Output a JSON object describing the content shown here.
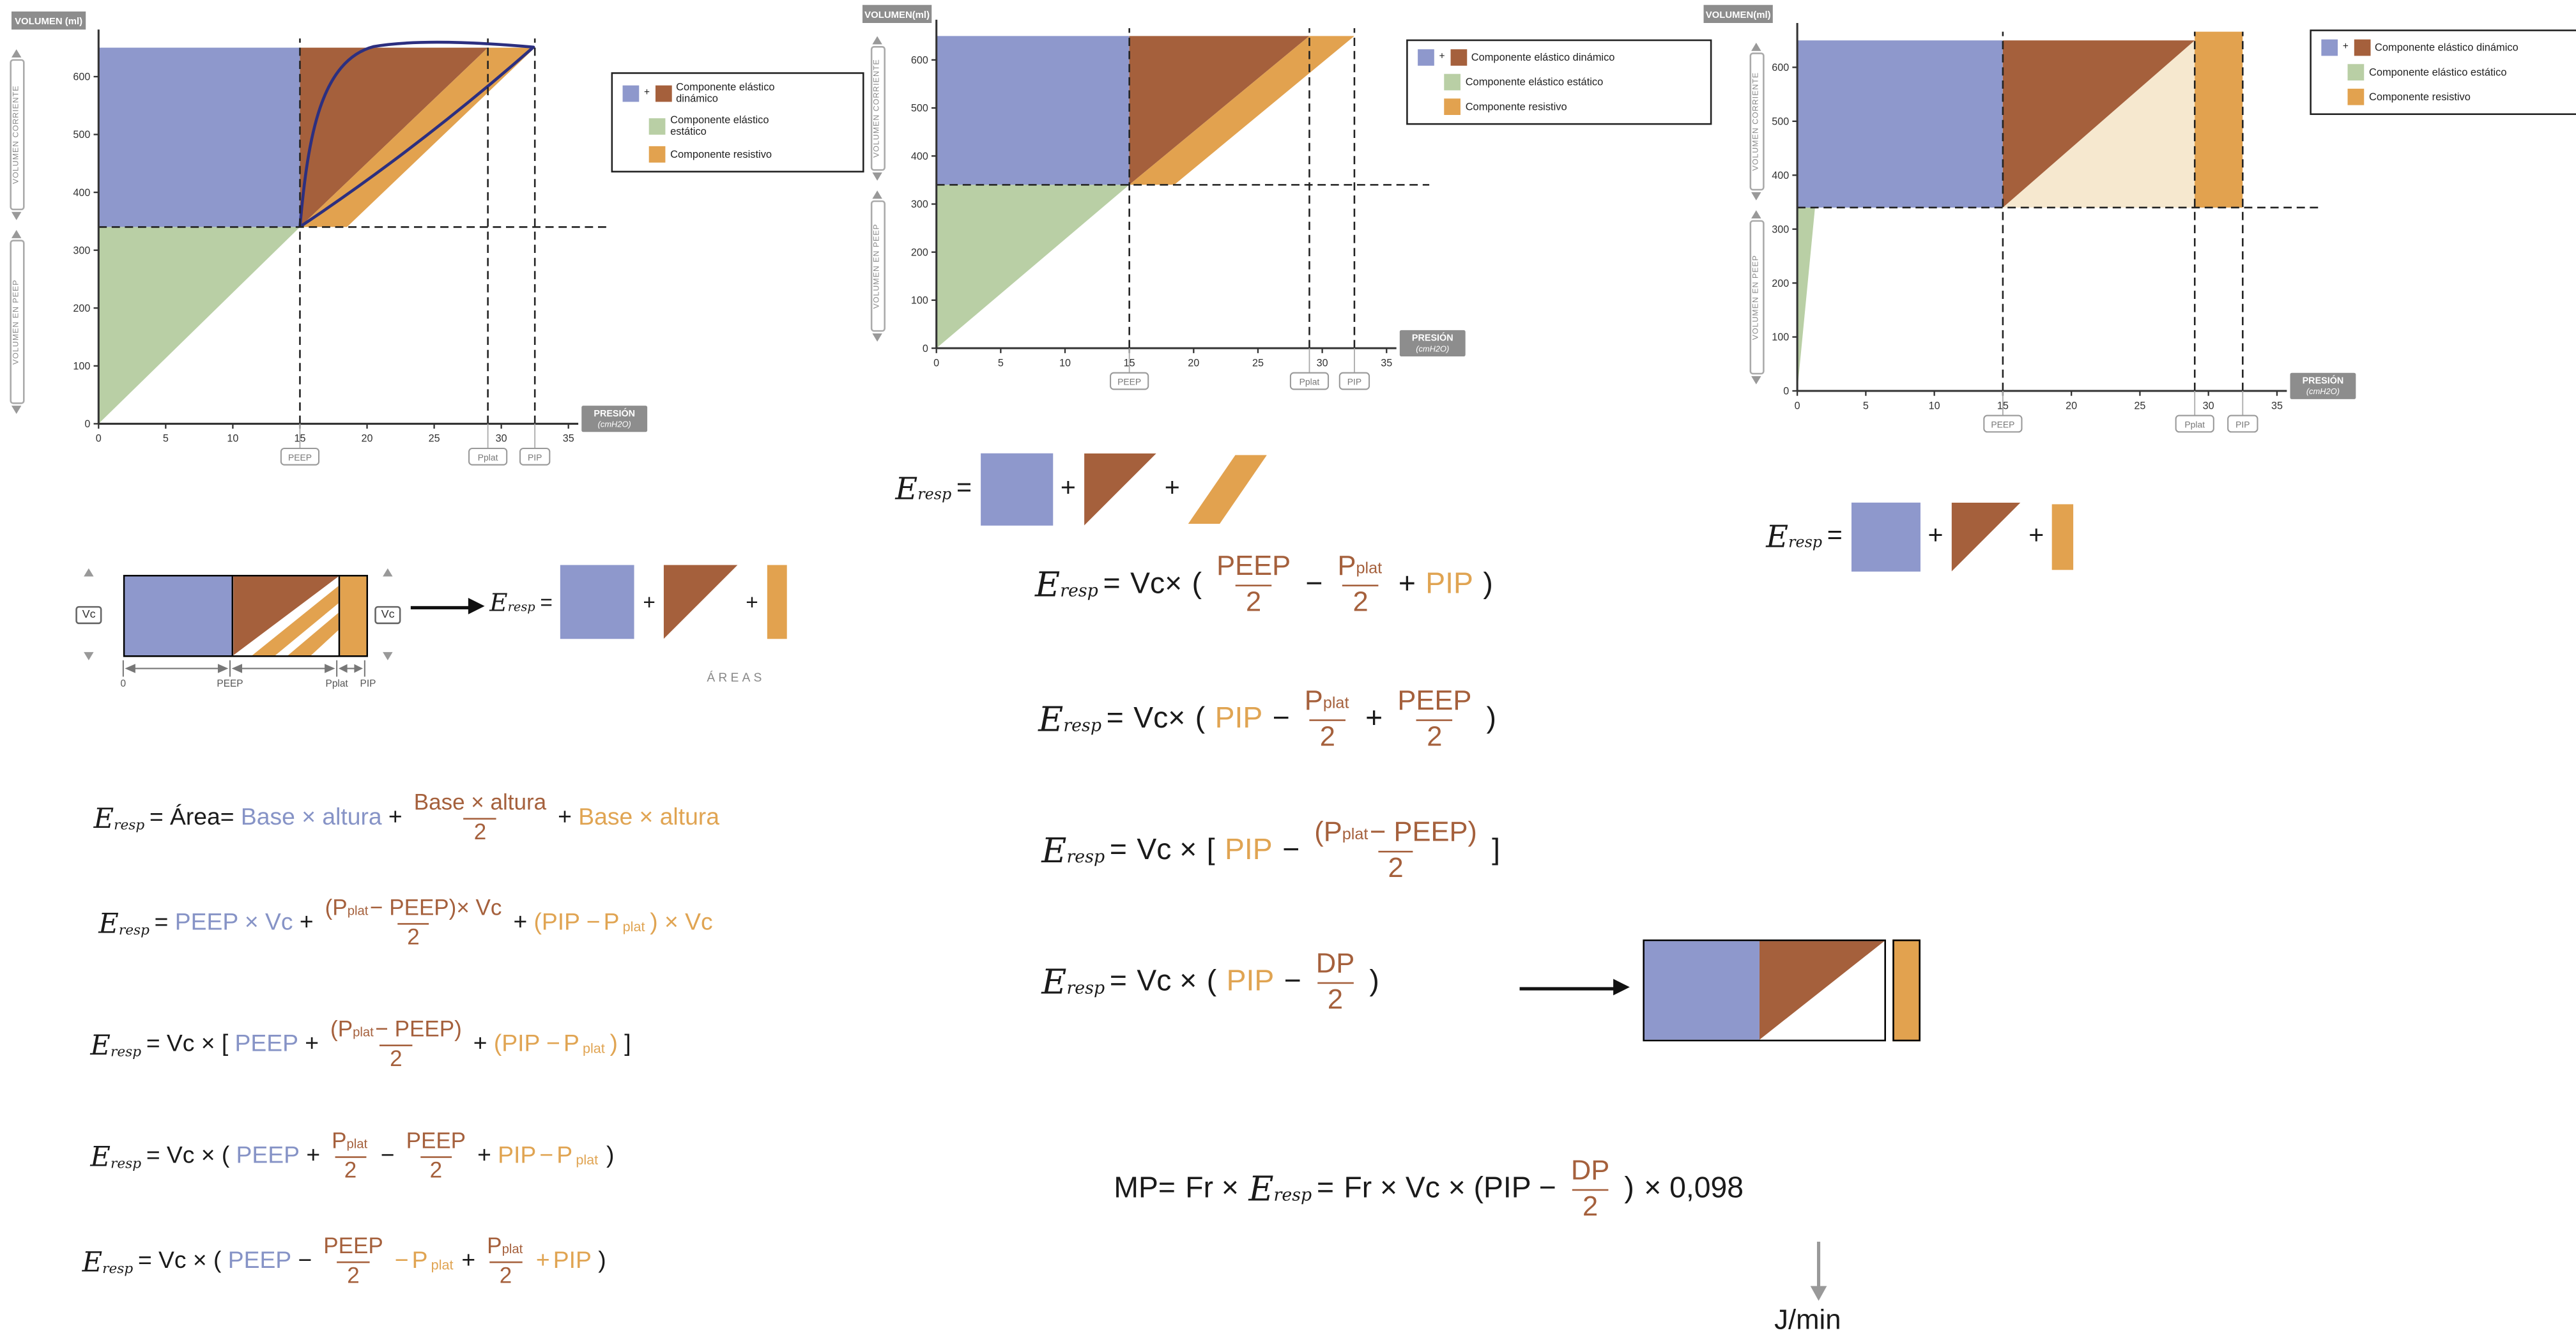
{
  "colors": {
    "blue": "#8e98cc",
    "green": "#b9cfa5",
    "brown": "#a5603c",
    "orange": "#e2a24f",
    "cream": "#f6e8cf",
    "navy": "#2c2f80",
    "badge": "#8d8d8d",
    "tblue": "#8693c6",
    "tbrown": "#a5603c",
    "torange": "#e0a452"
  },
  "axis": {
    "corriente": "VOLUMEN CORRIENTE",
    "en_peep": "VOLUMEN EN PEEP"
  },
  "legend": {
    "plus": "+",
    "dynamic": "Componente elástico dinámico",
    "static": "Componente elástico estático",
    "resistive": "Componente resistivo"
  },
  "labels": {
    "zero": "0",
    "peep": "PEEP",
    "pplat": "Pplat",
    "pip": "PIP",
    "vc": "Vc",
    "areas": "ÁREAS",
    "jmin": "J/min"
  },
  "t": {
    "E": "E",
    "resp": "resp",
    "eq": "=",
    "area": "Área=",
    "base": "Base × altura",
    "plus": "+",
    "minus": "−",
    "vcx": "Vc ×",
    "vcx2": "Vc×",
    "lp": "(",
    "rp": ")",
    "lb": "[",
    "rb": "]",
    "peep": "PEEP",
    "P": "P",
    "plat": "plat",
    "pip": "PIP",
    "dp": "DP",
    "two": "2",
    "peepxvc": "PEEP × Vc",
    "mpc": "− PEEP)",
    "mpcx": "− PEEP)× Vc",
    "pmo": "(PIP −",
    "cxvc": ") × Vc",
    "mp": "MP=",
    "frx": "Fr ×",
    "frvc": "Fr × Vc × (PIP −",
    "c098": "× 0,098"
  },
  "chart_data": [
    {
      "id": "pv1",
      "type": "area",
      "ylabel": "VOLUMEN (ml)",
      "xlabel1": "PRESIÓN",
      "xlabel2": "(cmH2O)",
      "xlim": [
        0,
        35
      ],
      "ylim": [
        0,
        670
      ],
      "xticks": [
        0,
        5,
        10,
        15,
        20,
        25,
        30,
        35
      ],
      "yticks": [
        0,
        100,
        200,
        300,
        400,
        500,
        600
      ],
      "peep": 15,
      "pplat": 29,
      "pip": 32.5,
      "vol_peep": 340,
      "vol_max": 650,
      "hline": 340,
      "vlines": [
        15,
        29,
        32.5
      ],
      "loop": true,
      "regions": [
        {
          "color": "green",
          "points": [
            [
              0,
              0
            ],
            [
              15,
              340
            ],
            [
              0,
              340
            ]
          ]
        },
        {
          "color": "blue",
          "points": [
            [
              0,
              340
            ],
            [
              15,
              340
            ],
            [
              15,
              650
            ],
            [
              0,
              650
            ]
          ]
        },
        {
          "color": "brown",
          "points": [
            [
              15,
              340
            ],
            [
              29,
              650
            ],
            [
              15,
              650
            ]
          ]
        },
        {
          "color": "orange",
          "points": [
            [
              15,
              340
            ],
            [
              18.5,
              340
            ],
            [
              32.5,
              650
            ],
            [
              29,
              650
            ]
          ]
        }
      ],
      "markers": [
        {
          "label": "PEEP",
          "x": 15
        },
        {
          "label": "Pplat",
          "x": 29
        },
        {
          "label": "PIP",
          "x": 32.5
        }
      ]
    },
    {
      "id": "pv2",
      "type": "area",
      "ylabel": "VOLUMEN(ml)",
      "xlabel1": "PRESIÓN",
      "xlabel2": "(cmH2O)",
      "xlim": [
        0,
        35
      ],
      "ylim": [
        0,
        670
      ],
      "xticks": [
        0,
        5,
        10,
        15,
        20,
        25,
        30,
        35
      ],
      "yticks": [
        0,
        100,
        200,
        300,
        400,
        500,
        600
      ],
      "peep": 15,
      "pplat": 29,
      "pip": 32.5,
      "vol_peep": 340,
      "vol_max": 650,
      "hline": 340,
      "vlines": [
        15,
        29,
        32.5
      ],
      "loop": false,
      "regions": [
        {
          "color": "green",
          "points": [
            [
              0,
              0
            ],
            [
              15,
              340
            ],
            [
              0,
              340
            ]
          ]
        },
        {
          "color": "blue",
          "points": [
            [
              0,
              340
            ],
            [
              15,
              340
            ],
            [
              15,
              650
            ],
            [
              0,
              650
            ]
          ]
        },
        {
          "color": "brown",
          "points": [
            [
              15,
              340
            ],
            [
              29,
              650
            ],
            [
              15,
              650
            ]
          ]
        },
        {
          "color": "orange",
          "points": [
            [
              15,
              340
            ],
            [
              18.5,
              340
            ],
            [
              32.5,
              650
            ],
            [
              29,
              650
            ]
          ]
        }
      ],
      "markers": [
        {
          "label": "PEEP",
          "x": 15
        },
        {
          "label": "Pplat",
          "x": 29
        },
        {
          "label": "PIP",
          "x": 32.5
        }
      ]
    },
    {
      "id": "pv3",
      "type": "area",
      "ylabel": "VOLUMEN(ml)",
      "xlabel1": "PRESIÓN",
      "xlabel2": "(cmH2O)",
      "xlim": [
        0,
        35
      ],
      "ylim": [
        0,
        670
      ],
      "xticks": [
        0,
        5,
        10,
        15,
        20,
        25,
        30,
        35
      ],
      "yticks": [
        0,
        100,
        200,
        300,
        400,
        500,
        600
      ],
      "peep": 15,
      "pplat": 29,
      "pip": 32.5,
      "vol_peep": 340,
      "vol_max": 650,
      "hline": 340,
      "vlines": [
        15,
        29,
        32.5
      ],
      "loop": false,
      "regions": [
        {
          "color": "green",
          "points": [
            [
              0,
              0
            ],
            [
              1.3,
              340
            ],
            [
              0,
              340
            ]
          ]
        },
        {
          "color": "blue",
          "points": [
            [
              0,
              340
            ],
            [
              15,
              340
            ],
            [
              15,
              650
            ],
            [
              0,
              650
            ]
          ]
        },
        {
          "color": "cream",
          "points": [
            [
              15,
              340
            ],
            [
              29,
              340
            ],
            [
              29,
              650
            ]
          ]
        },
        {
          "color": "brown",
          "points": [
            [
              15,
              340
            ],
            [
              29,
              650
            ],
            [
              15,
              650
            ]
          ]
        },
        {
          "color": "orange",
          "points": [
            [
              29,
              340
            ],
            [
              32.5,
              340
            ],
            [
              32.5,
              666
            ],
            [
              29,
              666
            ]
          ]
        }
      ],
      "markers": [
        {
          "label": "PEEP",
          "x": 15
        },
        {
          "label": "Pplat",
          "x": 29
        },
        {
          "label": "PIP",
          "x": 32.5
        }
      ]
    }
  ]
}
